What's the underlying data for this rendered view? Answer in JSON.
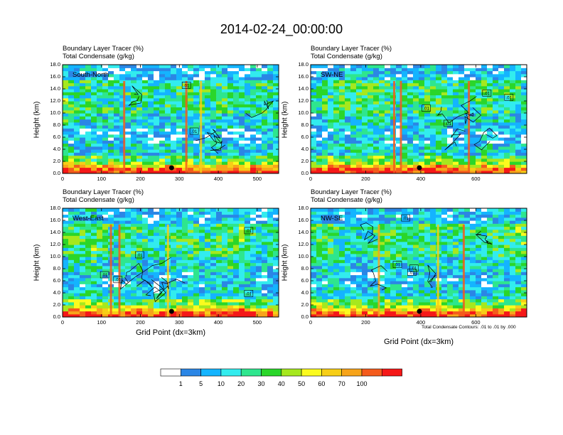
{
  "page_title": "2014-02-24_00:00:00",
  "footnote": "Total Condensate Contours: .01 to .01 by .000",
  "colors": [
    "#ffffff",
    "#2b86e5",
    "#14b4ff",
    "#32ecee",
    "#2ee68e",
    "#2ad62a",
    "#a6e81e",
    "#fbfb1e",
    "#f7ce16",
    "#f7a41a",
    "#f45b1c",
    "#f51818"
  ],
  "label_bar": {
    "levels": [
      "1",
      "5",
      "10",
      "20",
      "30",
      "40",
      "50",
      "60",
      "70",
      "100"
    ]
  },
  "chart_data": [
    {
      "type": "heatmap",
      "title_line1": "Boundary Layer Tracer    (%)",
      "title_line2": "Total Condensate    (g/kg)",
      "inset": "South-North",
      "ylabel": "Height (km)",
      "xlabel": "",
      "xlim": [
        0,
        555
      ],
      "ylim": [
        0,
        18
      ],
      "xticks": [
        "0",
        "100",
        "200",
        "300",
        "400",
        "500"
      ],
      "xtick_values": [
        0,
        100,
        200,
        300,
        400,
        500
      ],
      "yticks": [
        "0.0",
        "2.0",
        "4.0",
        "6.0",
        "8.0",
        "10.0",
        "12.0",
        "14.0",
        "16.0",
        "18.0"
      ],
      "contour_labels": [
        {
          "text": ".01",
          "x": 318,
          "y": 14.6
        },
        {
          "text": ".01",
          "x": 338,
          "y": 7.0
        }
      ],
      "marker_x": 280
    },
    {
      "type": "heatmap",
      "title_line1": "Boundary Layer Tracer    (%)",
      "title_line2": "Total Condensate    (g/kg)",
      "inset": "SW-NE",
      "ylabel": "Height (km)",
      "xlabel": "",
      "xlim": [
        0,
        785
      ],
      "ylim": [
        0,
        18
      ],
      "xticks": [
        "0",
        "200",
        "400",
        "600"
      ],
      "xtick_values": [
        0,
        200,
        400,
        600
      ],
      "yticks": [
        "0.0",
        "2.0",
        "4.0",
        "6.0",
        "8.0",
        "10.0",
        "12.0",
        "14.0",
        "16.0",
        "18.0"
      ],
      "contour_labels": [
        {
          "text": ".01",
          "x": 640,
          "y": 13.3
        },
        {
          "text": ".01",
          "x": 720,
          "y": 12.6
        },
        {
          "text": ".01",
          "x": 420,
          "y": 10.8
        },
        {
          "text": ".01",
          "x": 500,
          "y": 8.3
        }
      ],
      "marker_x": 395
    },
    {
      "type": "heatmap",
      "title_line1": "Boundary Layer Tracer    (%)",
      "title_line2": "Total Condensate    (g/kg)",
      "inset": "West-East",
      "ylabel": "Height (km)",
      "xlabel": "Grid Point (dx=3km)",
      "xlim": [
        0,
        555
      ],
      "ylim": [
        0,
        18
      ],
      "xticks": [
        "0",
        "100",
        "200",
        "300",
        "400",
        "500"
      ],
      "xtick_values": [
        0,
        100,
        200,
        300,
        400,
        500
      ],
      "yticks": [
        "0.0",
        "2.0",
        "4.0",
        "6.0",
        "8.0",
        "10.0",
        "12.0",
        "14.0",
        "16.0",
        "18.0"
      ],
      "contour_labels": [
        {
          "text": ".01",
          "x": 478,
          "y": 14.3
        },
        {
          "text": ".01",
          "x": 198,
          "y": 10.3
        },
        {
          "text": ".01",
          "x": 108,
          "y": 7.0
        },
        {
          "text": ".01",
          "x": 142,
          "y": 6.2
        },
        {
          "text": ".01",
          "x": 478,
          "y": 3.9
        }
      ],
      "marker_x": 280
    },
    {
      "type": "heatmap",
      "title_line1": "Boundary Layer Tracer    (%)",
      "title_line2": "Total Condensate    (g/kg)",
      "inset": "NW-SE",
      "ylabel": "Height (km)",
      "xlabel": "Grid Point (dx=3km)",
      "xlim": [
        0,
        785
      ],
      "ylim": [
        0,
        18
      ],
      "xticks": [
        "0",
        "200",
        "400",
        "600"
      ],
      "xtick_values": [
        0,
        200,
        400,
        600
      ],
      "yticks": [
        "0.0",
        "2.0",
        "4.0",
        "6.0",
        "8.0",
        "10.0",
        "12.0",
        "14.0",
        "16.0",
        "18.0"
      ],
      "contour_labels": [
        {
          "text": ".01",
          "x": 345,
          "y": 16.4
        },
        {
          "text": ".01",
          "x": 315,
          "y": 8.7
        },
        {
          "text": ".01",
          "x": 375,
          "y": 8.1
        },
        {
          "text": ".01",
          "x": 368,
          "y": 7.4
        }
      ],
      "marker_x": 395
    }
  ]
}
